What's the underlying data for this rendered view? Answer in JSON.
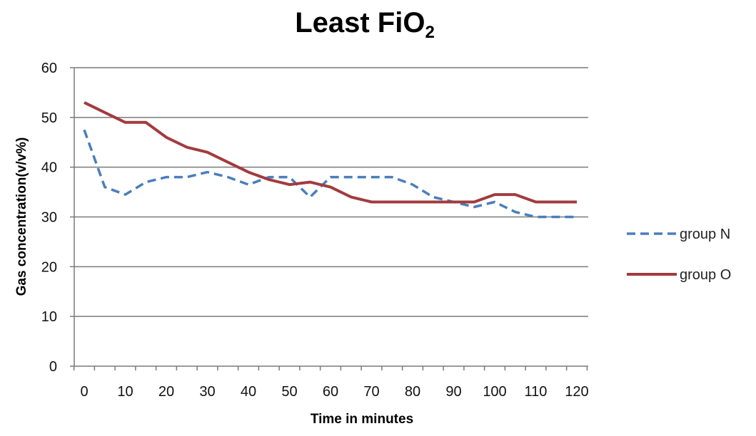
{
  "chart_data": {
    "type": "line",
    "title": "Least FiO",
    "title_subscript": "2",
    "xlabel": "Time in minutes",
    "ylabel": "Gas concentration(v/v%)",
    "x": [
      0,
      5,
      10,
      15,
      20,
      25,
      30,
      35,
      40,
      45,
      50,
      55,
      60,
      65,
      70,
      75,
      80,
      85,
      90,
      95,
      100,
      105,
      110,
      115,
      120
    ],
    "x_ticks": [
      "0",
      "10",
      "20",
      "30",
      "40",
      "50",
      "60",
      "70",
      "80",
      "90",
      "100",
      "110",
      "120"
    ],
    "y_ticks": [
      "0",
      "10",
      "20",
      "30",
      "40",
      "50",
      "60"
    ],
    "ylim": [
      0,
      60
    ],
    "xlim": [
      0,
      120
    ],
    "grid": "horizontal",
    "legend_position": "right",
    "series": [
      {
        "name": "group N",
        "color": "#4A7EBB",
        "style": "dashed",
        "values": [
          47.5,
          36,
          34.5,
          37,
          38,
          38,
          39,
          38,
          36.5,
          38,
          38,
          34,
          38,
          38,
          38,
          38,
          36.5,
          34,
          33,
          32,
          33,
          31,
          30,
          30,
          30
        ]
      },
      {
        "name": "group O",
        "color": "#A23B3F",
        "style": "solid",
        "values": [
          53,
          51,
          49,
          49,
          46,
          44,
          43,
          41,
          39,
          37.5,
          36.5,
          37,
          36,
          34,
          33,
          33,
          33,
          33,
          33,
          33,
          34.5,
          34.5,
          33,
          33,
          33
        ]
      }
    ]
  }
}
